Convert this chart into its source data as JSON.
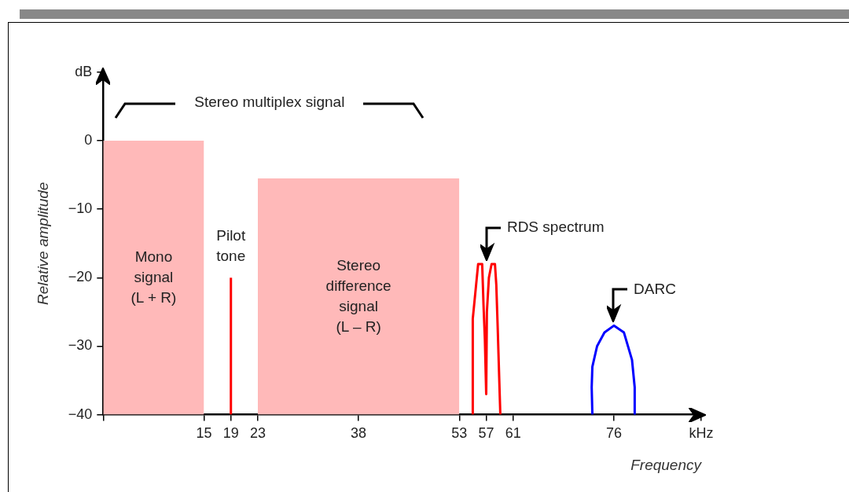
{
  "chart_data": {
    "type": "line",
    "title": "Stereo multiplex signal",
    "xlabel": "Frequency",
    "ylabel": "Relative amplitude",
    "xlim": [
      0,
      89
    ],
    "ylim": [
      -40,
      10
    ],
    "xticks": [
      {
        "value": 0,
        "label": null
      },
      15,
      19,
      23,
      38,
      53,
      57,
      61,
      76,
      {
        "value": 89,
        "label": "kHz"
      }
    ],
    "yticks": [
      -40,
      -30,
      -20,
      -10,
      0,
      {
        "value": 10,
        "label": "dB"
      }
    ],
    "legend": false,
    "grid": false,
    "series": [
      {
        "type": "area",
        "name": "Mono\nsignal\n(L + R)",
        "color": "#ffb9b9",
        "x": [
          0,
          0,
          15,
          15
        ],
        "values": [
          -40,
          0,
          0,
          -40
        ]
      },
      {
        "name": "Pilot\ntone",
        "color": "#ff0000",
        "x": [
          19,
          19
        ],
        "values": [
          -40,
          -20
        ]
      },
      {
        "type": "area",
        "name": "Stereo\ndifference\nsignal\n(L – R)",
        "color": "#ffb9b9",
        "x": [
          23,
          23,
          53,
          53
        ],
        "values": [
          -40,
          -5.5,
          -5.5,
          -40
        ]
      },
      {
        "name": "RDS spectrum",
        "color": "#ff0000",
        "x": [
          55,
          55,
          55.5,
          55.8,
          56.4,
          56.6,
          56.8,
          57,
          57.1,
          57.4,
          57.8,
          58.3,
          58.5,
          58.7,
          59.1
        ],
        "values": [
          -40,
          -26,
          -21,
          -18,
          -18,
          -24,
          -29,
          -37,
          -25,
          -20,
          -18,
          -18,
          -21,
          -27,
          -40
        ]
      },
      {
        "name": "DARC",
        "color": "#0000ff",
        "x": [
          72.8,
          72.7,
          72.8,
          73.5,
          74.6,
          76,
          77.5,
          78.7,
          79.1,
          79.1
        ],
        "values": [
          -40,
          -36,
          -33,
          -30,
          -28,
          -27,
          -28,
          -32,
          -36,
          -40
        ]
      }
    ]
  }
}
